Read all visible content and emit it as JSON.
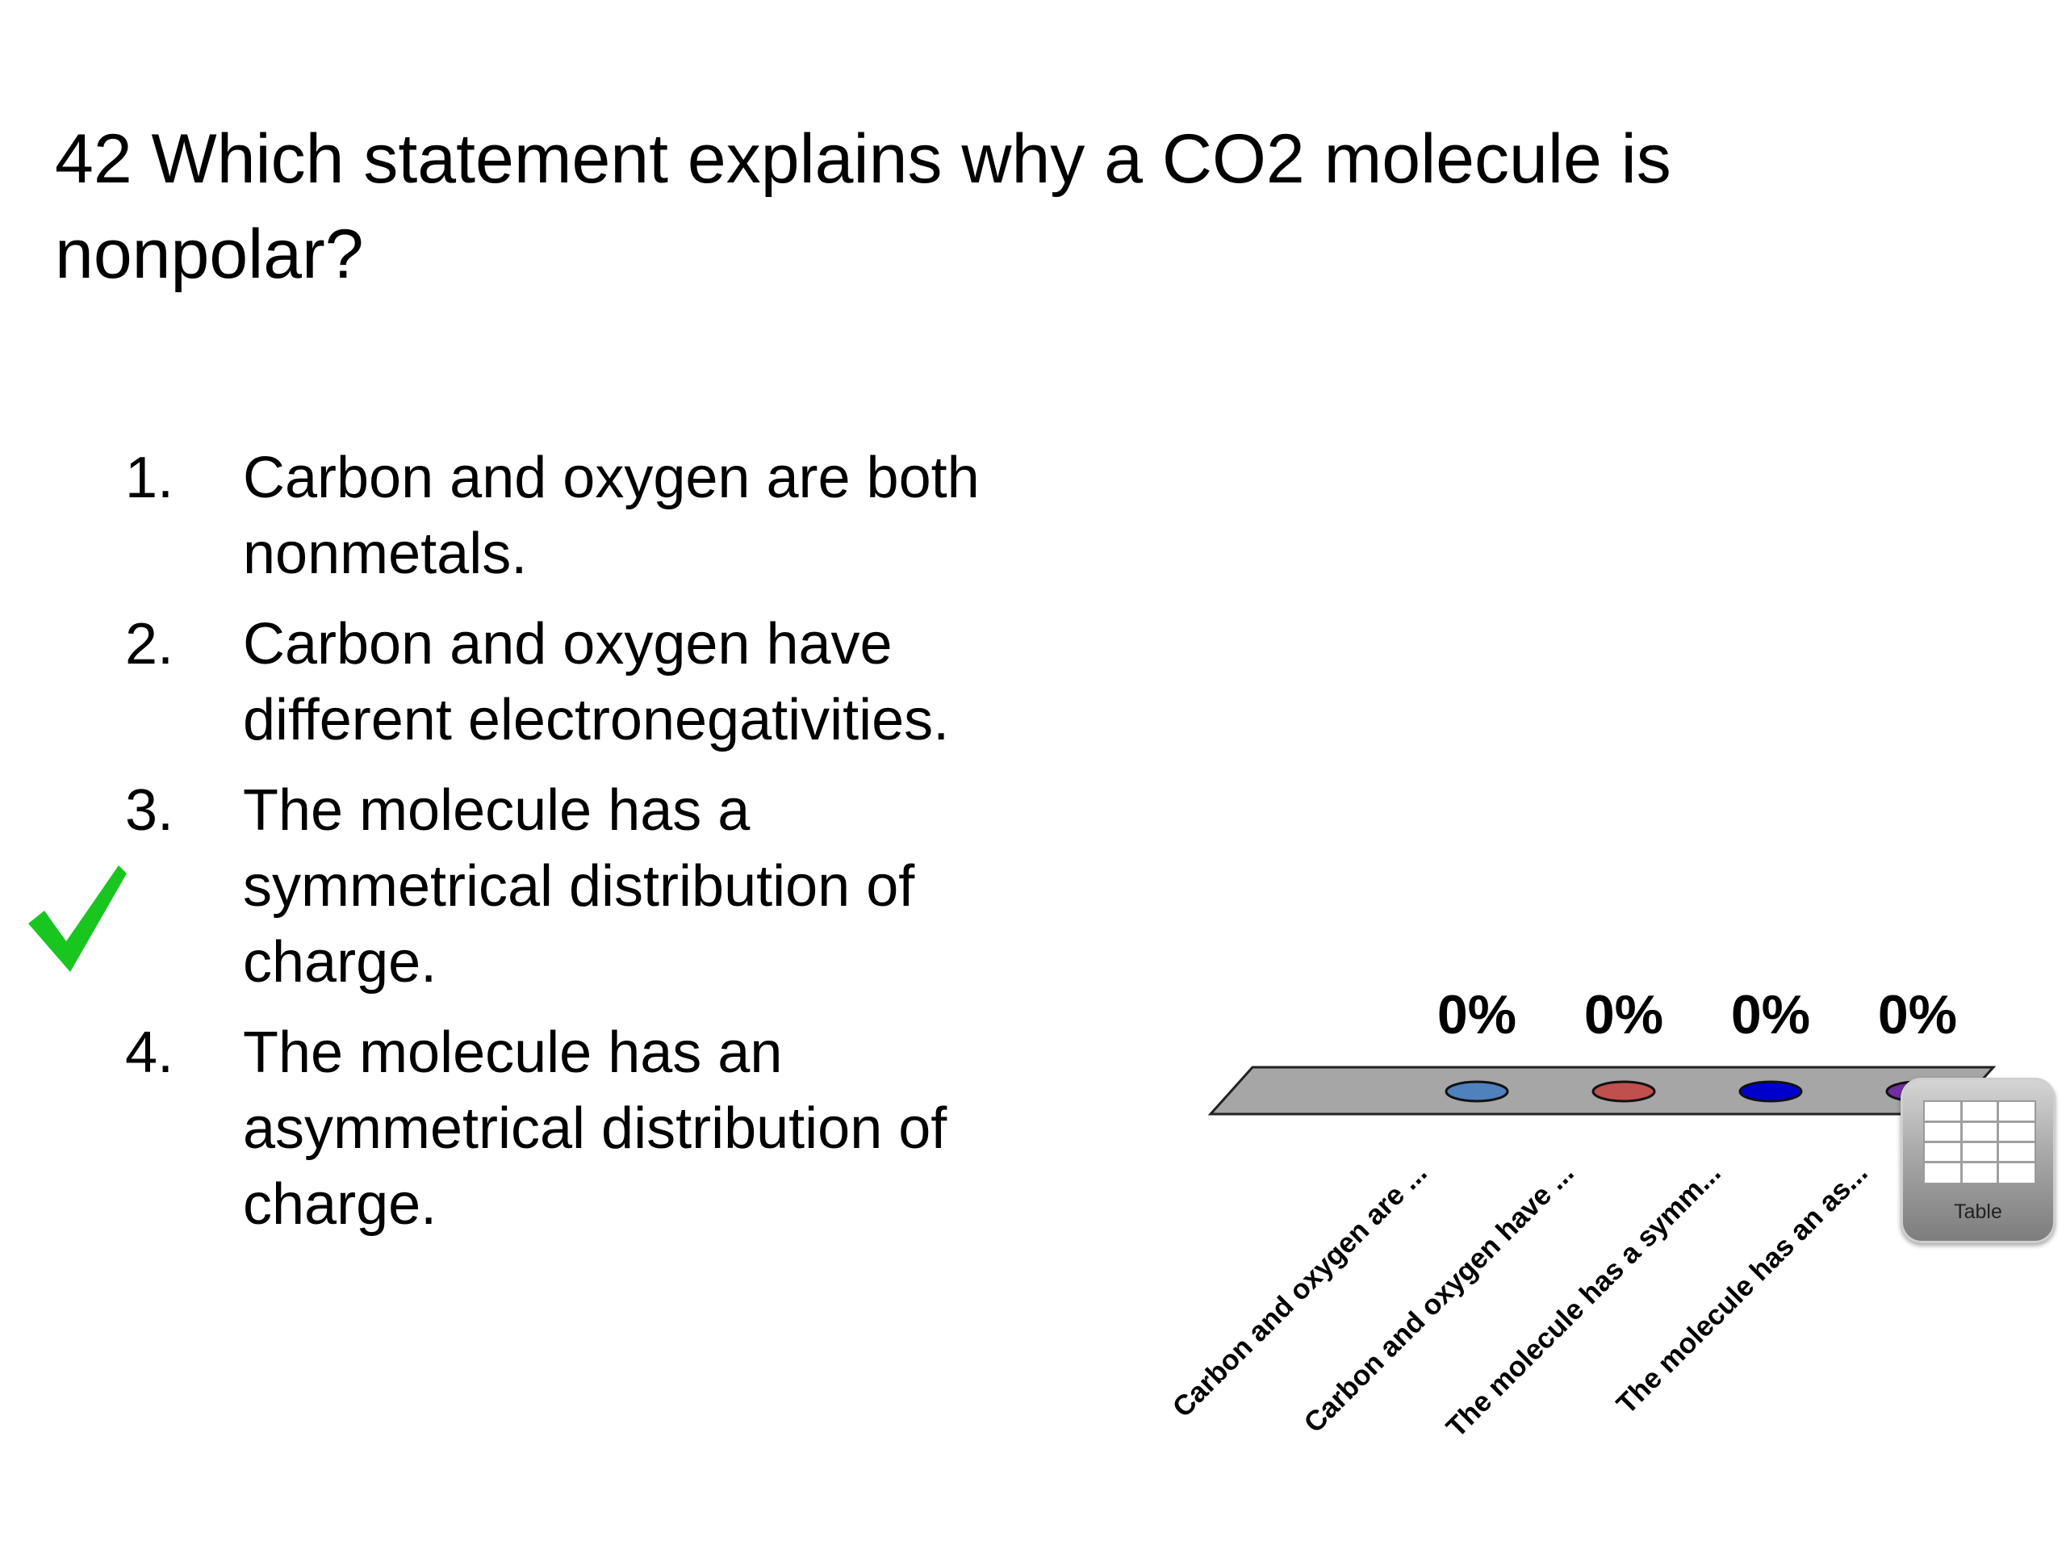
{
  "question": "42 Which statement explains why a CO2 molecule is nonpolar?",
  "options": [
    {
      "num": "1.",
      "text": "Carbon and oxygen are both nonmetals."
    },
    {
      "num": "2.",
      "text": "Carbon and oxygen have different electronegativities."
    },
    {
      "num": "3.",
      "text": "The molecule has a symmetrical distribution of charge."
    },
    {
      "num": "4.",
      "text": "The molecule has an asymmetrical distribution of charge."
    }
  ],
  "correct_option": 3,
  "icons": {
    "correct": "checkmark-icon",
    "table": "table-grid-icon"
  },
  "table_button": {
    "label": "Table"
  },
  "chart_data": {
    "type": "bar",
    "categories": [
      "Carbon and oxygen are ...",
      "Carbon and oxygen have ...",
      "The molecule has a symm...",
      "The molecule has an as..."
    ],
    "values": [
      0,
      0,
      0,
      0
    ],
    "data_labels": [
      "0%",
      "0%",
      "0%",
      "0%"
    ],
    "colors": [
      "#4f81bd",
      "#c0504d",
      "#0000cc",
      "#7030a0"
    ],
    "ylim": [
      0,
      100
    ],
    "grid": false
  }
}
